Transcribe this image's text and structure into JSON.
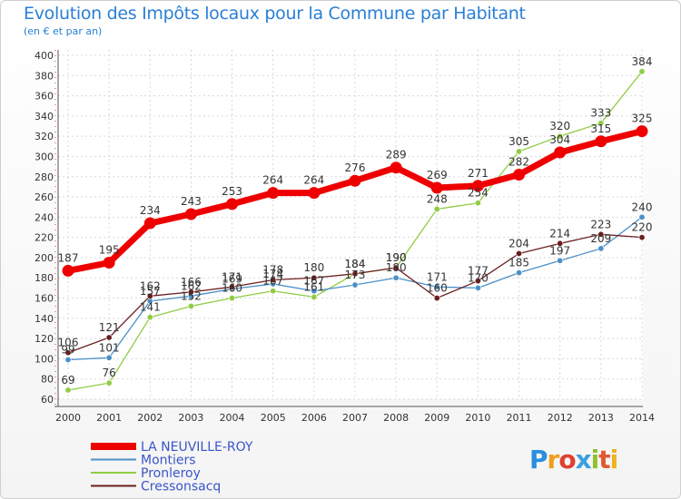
{
  "chart_data": {
    "type": "line",
    "title": "Evolution des Impôts locaux pour la Commune par Habitant",
    "subtitle": "(en € et par an)",
    "x": [
      2000,
      2001,
      2002,
      2003,
      2004,
      2005,
      2006,
      2007,
      2008,
      2009,
      2010,
      2011,
      2012,
      2013,
      2014
    ],
    "ylim": [
      60,
      400
    ],
    "yticks": [
      60,
      80,
      100,
      120,
      140,
      160,
      180,
      200,
      220,
      240,
      260,
      280,
      300,
      320,
      340,
      360,
      380,
      400
    ],
    "grid": true,
    "legend_position": "bottom-left",
    "series": [
      {
        "name": "LA NEUVILLE-ROY",
        "color": "#ee0000",
        "values": [
          187,
          195,
          234,
          243,
          253,
          264,
          264,
          276,
          289,
          269,
          271,
          282,
          304,
          315,
          325
        ]
      },
      {
        "name": "Montiers",
        "color": "#4a90c8",
        "values": [
          99,
          101,
          157,
          162,
          169,
          174,
          167,
          173,
          180,
          171,
          170,
          185,
          197,
          209,
          240
        ]
      },
      {
        "name": "Pronleroy",
        "color": "#8fcc44",
        "values": [
          69,
          76,
          141,
          152,
          160,
          167,
          161,
          184,
          190,
          248,
          254,
          305,
          320,
          333,
          384
        ]
      },
      {
        "name": "Cressonsacq",
        "color": "#6b1e1e",
        "values": [
          106,
          121,
          162,
          166,
          171,
          178,
          180,
          184,
          190,
          160,
          177,
          204,
          214,
          223,
          220
        ]
      }
    ]
  },
  "logo": {
    "letters": [
      "P",
      "r",
      "o",
      "x",
      "i",
      "t",
      "i"
    ],
    "colors": [
      "#2a8ee0",
      "#f0a020",
      "#e04030",
      "#3aa0e0",
      "#90c030",
      "#e05a30",
      "#f0b020"
    ]
  }
}
